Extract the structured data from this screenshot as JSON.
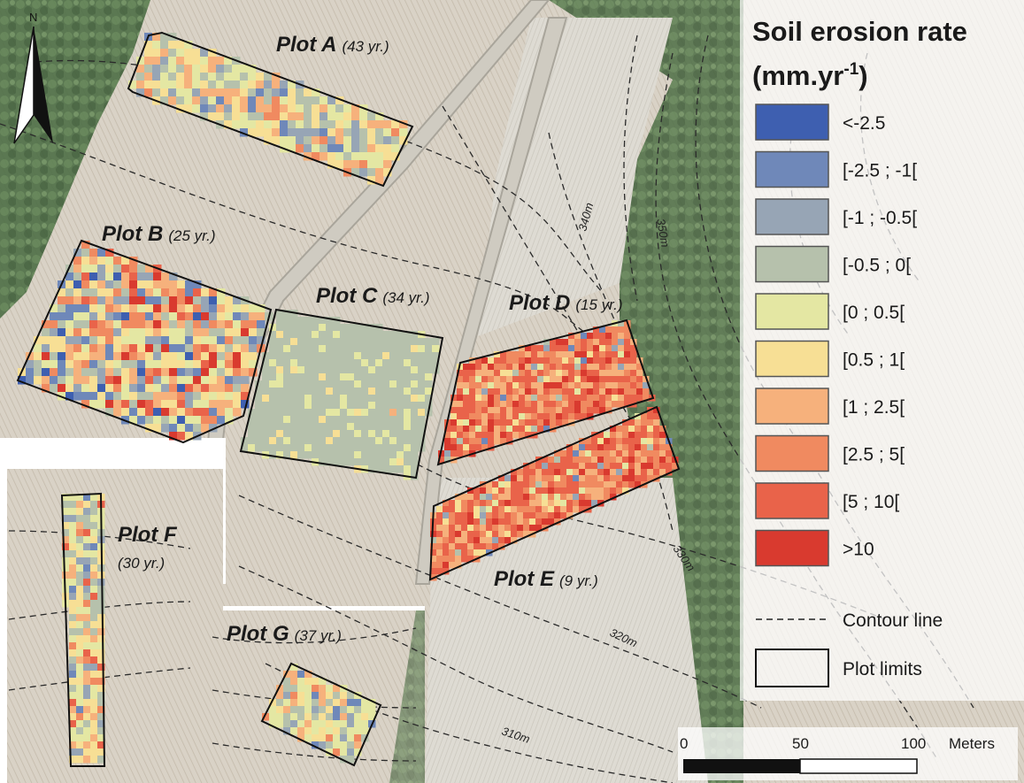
{
  "north_label": "N",
  "legend": {
    "title_line1": "Soil erosion rate",
    "title_line2_base": "(mm.yr",
    "title_line2_sup": "-1",
    "title_line2_end": ")",
    "classes": [
      {
        "label": "<-2.5",
        "color": "#3e5fb0"
      },
      {
        "label": "[-2.5 ; -1[",
        "color": "#6f88b9"
      },
      {
        "label": "[-1 ; -0.5[",
        "color": "#97a5b5"
      },
      {
        "label": "[-0.5 ; 0[",
        "color": "#b6c1ac"
      },
      {
        "label": "[0 ; 0.5[",
        "color": "#e4e7a3"
      },
      {
        "label": "[0.5 ; 1[",
        "color": "#f7df95"
      },
      {
        "label": "[1 ; 2.5[",
        "color": "#f6b17c"
      },
      {
        "label": "[2.5 ; 5[",
        "color": "#f08a60"
      },
      {
        "label": "[5 ; 10[",
        "color": "#e9634a"
      },
      {
        "label": ">10",
        "color": "#d93a2f"
      }
    ],
    "contour_label": "Contour line",
    "plot_limits_label": "Plot limits"
  },
  "plots": [
    {
      "name": "Plot A",
      "age": "(43 yr.)"
    },
    {
      "name": "Plot B",
      "age": "(25 yr.)"
    },
    {
      "name": "Plot C",
      "age": "(34 yr.)"
    },
    {
      "name": "Plot D",
      "age": "(15 yr.)"
    },
    {
      "name": "Plot E",
      "age": "(9 yr.)"
    },
    {
      "name": "Plot F",
      "age": "(30 yr.)"
    },
    {
      "name": "Plot G",
      "age": "(37 yr.)"
    }
  ],
  "contours": [
    "340m",
    "350m",
    "330m",
    "320m",
    "310m"
  ],
  "scale": {
    "ticks": [
      "0",
      "50",
      "100"
    ],
    "unit": "Meters"
  }
}
